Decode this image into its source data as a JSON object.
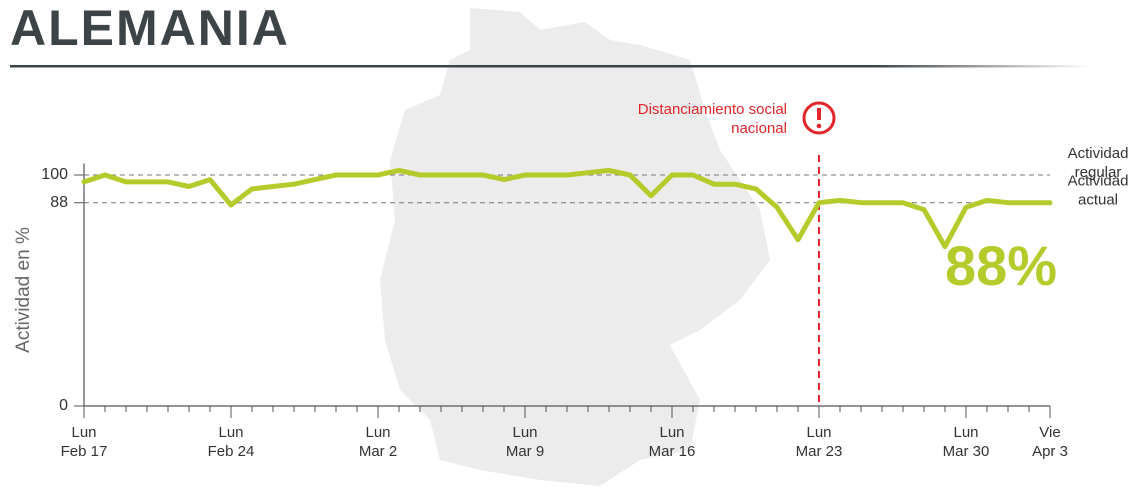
{
  "chart_data": {
    "type": "line",
    "title": "ALEMANIA",
    "y_label": "Actividad en %",
    "categories": [
      [
        "Lun",
        "Feb 17"
      ],
      null,
      null,
      null,
      null,
      null,
      null,
      [
        "Lun",
        "Feb 24"
      ],
      null,
      null,
      null,
      null,
      null,
      null,
      [
        "Lun",
        "Mar 2"
      ],
      null,
      null,
      null,
      null,
      null,
      null,
      [
        "Lun",
        "Mar 9"
      ],
      null,
      null,
      null,
      null,
      null,
      null,
      [
        "Lun",
        "Mar 16"
      ],
      null,
      null,
      null,
      null,
      null,
      null,
      [
        "Lun",
        "Mar 23"
      ],
      null,
      null,
      null,
      null,
      null,
      null,
      [
        "Lun",
        "Mar 30"
      ],
      null,
      null,
      null,
      [
        "Vie",
        "Apr 3"
      ]
    ],
    "values": [
      97,
      100,
      97,
      97,
      97,
      95,
      98,
      87,
      94,
      95,
      96,
      98,
      100,
      100,
      100,
      102,
      100,
      100,
      100,
      100,
      98,
      100,
      100,
      100,
      101,
      102,
      100,
      91,
      100,
      100,
      96,
      96,
      94,
      86,
      72,
      88,
      89,
      88,
      88,
      88,
      85,
      69,
      86,
      89,
      88,
      88,
      88
    ],
    "color": "#b5cb2c",
    "ylim": [
      0,
      105
    ],
    "yticks": [
      0,
      88,
      100
    ],
    "reference_lines": [
      {
        "value": 100,
        "label": [
          "Actividad",
          "regular"
        ]
      },
      {
        "value": 88,
        "label": [
          "Actividad",
          "actual"
        ]
      }
    ],
    "highlight_label": "88%",
    "annotation": {
      "text": [
        "Distanciamiento social",
        "nacional"
      ],
      "at": "Mar 23",
      "color": "#e0262b"
    }
  }
}
